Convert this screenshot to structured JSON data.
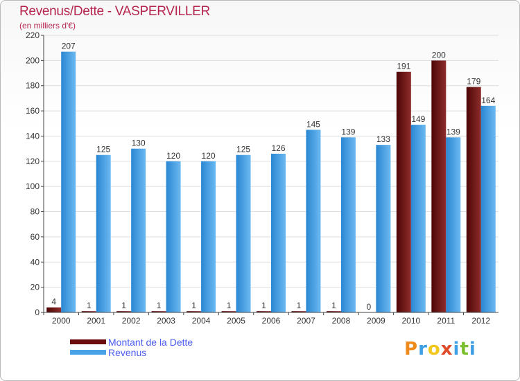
{
  "header": {
    "title": "Revenus/Dette - VASPERVILLER",
    "subtitle": "(en milliers d'€)"
  },
  "legend": {
    "items": [
      {
        "label": "Montant de la Dette",
        "color": "#6b0b0b"
      },
      {
        "label": "Revenus",
        "color": "#49a3e6"
      }
    ]
  },
  "logo": {
    "text": "Proxiti",
    "colors": [
      "#ef8b1c",
      "#3f9fe4",
      "#f2c81e",
      "#e04c2a",
      "#3f9fe4",
      "#7bbf2e",
      "#3f9fe4"
    ]
  },
  "colors": {
    "debt_dark": "#5a0808",
    "debt_light": "#8b2a2a",
    "revenue_dark": "#2f8fd8",
    "revenue_light": "#6bb8f0",
    "grid": "#dddddd",
    "axis": "#444444",
    "label": "#333333"
  },
  "chart_data": {
    "type": "bar",
    "categories": [
      "2000",
      "2001",
      "2002",
      "2003",
      "2004",
      "2005",
      "2006",
      "2007",
      "2008",
      "2009",
      "2010",
      "2011",
      "2012"
    ],
    "series": [
      {
        "name": "Montant de la Dette",
        "values": [
          4,
          1,
          1,
          1,
          1,
          1,
          1,
          1,
          1,
          0,
          191,
          200,
          179
        ]
      },
      {
        "name": "Revenus",
        "values": [
          207,
          125,
          130,
          120,
          120,
          125,
          126,
          145,
          139,
          133,
          149,
          139,
          164
        ]
      }
    ],
    "title": "Revenus/Dette - VASPERVILLER",
    "ylabel": "(en milliers d'€)",
    "ylim": [
      0,
      220
    ],
    "yticks": [
      0,
      20,
      40,
      60,
      80,
      100,
      120,
      140,
      160,
      180,
      200,
      220
    ],
    "grid": true,
    "legend_position": "bottom-left"
  }
}
